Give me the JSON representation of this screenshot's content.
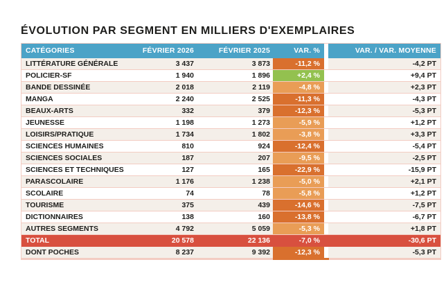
{
  "page_title": "ÉVOLUTION PAR SEGMENT EN MILLIERS D'EXEMPLAIRES",
  "colors": {
    "header_blue": "#4BA3C7",
    "row_light": "#F4EFE9",
    "divider_pink": "#F3CCC2",
    "var_strong": "#D9702E",
    "var_mild": "#E99D56",
    "var_positive": "#93C14F",
    "total_red": "#D8503F",
    "text_dark": "#1D1D1B"
  },
  "table": {
    "columns": [
      "CATÉGORIES",
      "FÉVRIER 2026",
      "FÉVRIER 2025",
      "VAR. %",
      "VAR. / VAR. MOYENNE"
    ],
    "rows": [
      {
        "category": "LITTÉRATURE GÉNÉRALE",
        "feb_2026": "3 437",
        "feb_2025": "3 873",
        "var_pct": "-11,2 %",
        "var_tone": "strong",
        "var_avg": "-4,2 PT"
      },
      {
        "category": "POLICIER-SF",
        "feb_2026": "1 940",
        "feb_2025": "1 896",
        "var_pct": "+2,4 %",
        "var_tone": "positive",
        "var_avg": "+9,4 PT"
      },
      {
        "category": "BANDE DESSINÉE",
        "feb_2026": "2 018",
        "feb_2025": "2 119",
        "var_pct": "-4,8 %",
        "var_tone": "mild",
        "var_avg": "+2,3 PT"
      },
      {
        "category": "MANGA",
        "feb_2026": "2 240",
        "feb_2025": "2 525",
        "var_pct": "-11,3 %",
        "var_tone": "strong",
        "var_avg": "-4,3 PT"
      },
      {
        "category": "BEAUX-ARTS",
        "feb_2026": "332",
        "feb_2025": "379",
        "var_pct": "-12,3 %",
        "var_tone": "strong",
        "var_avg": "-5,3 PT"
      },
      {
        "category": "JEUNESSE",
        "feb_2026": "1 198",
        "feb_2025": "1 273",
        "var_pct": "-5,9 %",
        "var_tone": "mild",
        "var_avg": "+1,2 PT"
      },
      {
        "category": "LOISIRS/PRATIQUE",
        "feb_2026": "1 734",
        "feb_2025": "1 802",
        "var_pct": "-3,8 %",
        "var_tone": "mild",
        "var_avg": "+3,3 PT"
      },
      {
        "category": "SCIENCES HUMAINES",
        "feb_2026": "810",
        "feb_2025": "924",
        "var_pct": "-12,4 %",
        "var_tone": "strong",
        "var_avg": "-5,4 PT"
      },
      {
        "category": "SCIENCES SOCIALES",
        "feb_2026": "187",
        "feb_2025": "207",
        "var_pct": "-9,5 %",
        "var_tone": "mild",
        "var_avg": "-2,5 PT"
      },
      {
        "category": "SCIENCES ET TECHNIQUES",
        "feb_2026": "127",
        "feb_2025": "165",
        "var_pct": "-22,9 %",
        "var_tone": "strong",
        "var_avg": "-15,9 PT"
      },
      {
        "category": "PARASCOLAIRE",
        "feb_2026": "1 176",
        "feb_2025": "1 238",
        "var_pct": "-5,0 %",
        "var_tone": "mild",
        "var_avg": "+2,1 PT"
      },
      {
        "category": "SCOLAIRE",
        "feb_2026": "74",
        "feb_2025": "78",
        "var_pct": "-5,8 %",
        "var_tone": "mild",
        "var_avg": "+1,2 PT"
      },
      {
        "category": "TOURISME",
        "feb_2026": "375",
        "feb_2025": "439",
        "var_pct": "-14,6 %",
        "var_tone": "strong",
        "var_avg": "-7,5 PT"
      },
      {
        "category": "DICTIONNAIRES",
        "feb_2026": "138",
        "feb_2025": "160",
        "var_pct": "-13,8 %",
        "var_tone": "strong",
        "var_avg": "-6,7 PT"
      },
      {
        "category": "AUTRES SEGMENTS",
        "feb_2026": "4 792",
        "feb_2025": "5 059",
        "var_pct": "-5,3 %",
        "var_tone": "mild",
        "var_avg": "+1,8 PT"
      },
      {
        "category": "TOTAL",
        "feb_2026": "20 578",
        "feb_2025": "22 136",
        "var_pct": "-7,0 %",
        "var_tone": "total",
        "var_avg": "-30,6 PT",
        "is_total": true
      },
      {
        "category": "DONT POCHES",
        "feb_2026": "8 237",
        "feb_2025": "9 392",
        "var_pct": "-12,3 %",
        "var_tone": "strong",
        "var_avg": "-5,3 PT"
      }
    ]
  },
  "chart_data": {
    "type": "table",
    "title": "ÉVOLUTION PAR SEGMENT EN MILLIERS D'EXEMPLAIRES",
    "columns": [
      "CATÉGORIES",
      "FÉVRIER 2026",
      "FÉVRIER 2025",
      "VAR. %",
      "VAR. / VAR. MOYENNE (PT)"
    ],
    "rows": [
      [
        "LITTÉRATURE GÉNÉRALE",
        3437,
        3873,
        -11.2,
        -4.2
      ],
      [
        "POLICIER-SF",
        1940,
        1896,
        2.4,
        9.4
      ],
      [
        "BANDE DESSINÉE",
        2018,
        2119,
        -4.8,
        2.3
      ],
      [
        "MANGA",
        2240,
        2525,
        -11.3,
        -4.3
      ],
      [
        "BEAUX-ARTS",
        332,
        379,
        -12.3,
        -5.3
      ],
      [
        "JEUNESSE",
        1198,
        1273,
        -5.9,
        1.2
      ],
      [
        "LOISIRS/PRATIQUE",
        1734,
        1802,
        -3.8,
        3.3
      ],
      [
        "SCIENCES HUMAINES",
        810,
        924,
        -12.4,
        -5.4
      ],
      [
        "SCIENCES SOCIALES",
        187,
        207,
        -9.5,
        -2.5
      ],
      [
        "SCIENCES ET TECHNIQUES",
        127,
        165,
        -22.9,
        -15.9
      ],
      [
        "PARASCOLAIRE",
        1176,
        1238,
        -5.0,
        2.1
      ],
      [
        "SCOLAIRE",
        74,
        78,
        -5.8,
        1.2
      ],
      [
        "TOURISME",
        375,
        439,
        -14.6,
        -7.5
      ],
      [
        "DICTIONNAIRES",
        138,
        160,
        -13.8,
        -6.7
      ],
      [
        "AUTRES SEGMENTS",
        4792,
        5059,
        -5.3,
        1.8
      ],
      [
        "TOTAL",
        20578,
        22136,
        -7.0,
        -30.6
      ],
      [
        "DONT POCHES",
        8237,
        9392,
        -12.3,
        -5.3
      ]
    ]
  }
}
